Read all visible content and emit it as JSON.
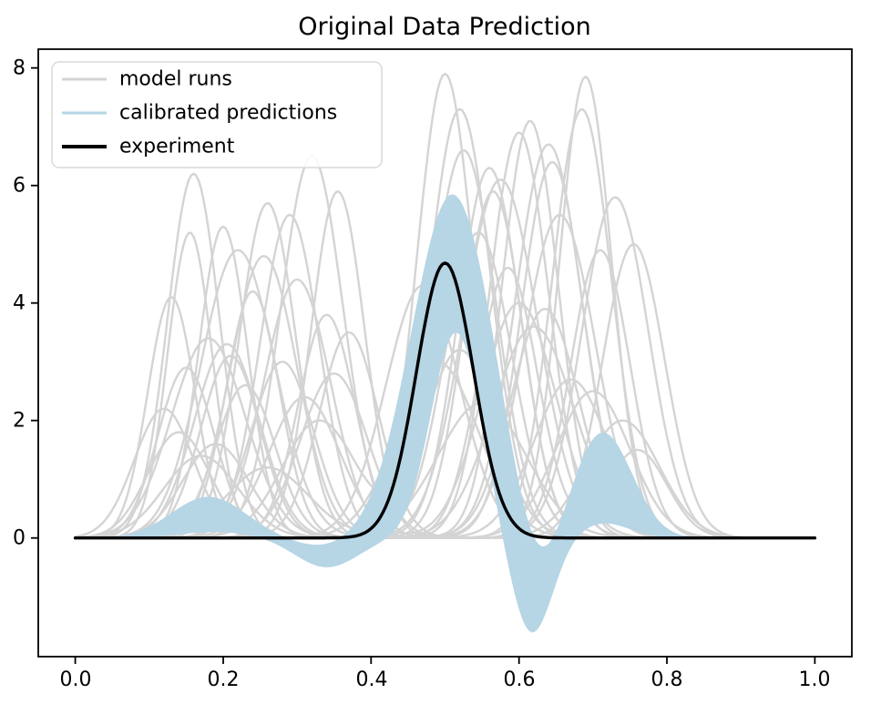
{
  "figure": {
    "background_color": "#ffffff",
    "axes_edge_color": "#000000"
  },
  "chart_data": {
    "type": "line",
    "title": "Original Data Prediction",
    "xlabel": "",
    "ylabel": "",
    "grid": false,
    "xlim": [
      -0.05,
      1.05
    ],
    "ylim": [
      -2.02,
      8.32
    ],
    "xticks": [
      0.0,
      0.2,
      0.4,
      0.6,
      0.8,
      1.0
    ],
    "xtick_labels": [
      "0.0",
      "0.2",
      "0.4",
      "0.6",
      "0.8",
      "1.0"
    ],
    "yticks": [
      0,
      2,
      4,
      6,
      8
    ],
    "ytick_labels": [
      "0",
      "2",
      "4",
      "6",
      "8"
    ],
    "legend": {
      "position": "upper left",
      "entries": [
        {
          "label": "model runs",
          "color": "#d4d4d4",
          "line_width": 3
        },
        {
          "label": "calibrated predictions",
          "color": "#b6d5e5",
          "line_width": 3
        },
        {
          "label": "experiment",
          "color": "#000000",
          "line_width": 4
        }
      ]
    },
    "series": {
      "model_runs": {
        "name": "model runs",
        "color": "#d4d4d4",
        "line_width": 2.4,
        "curve_model": "each curve is a sum of gaussian bumps [amplitude, center, sigma] over x in [0,1]",
        "curves": [
          [
            [
              6.2,
              0.16,
              0.035
            ],
            [
              7.9,
              0.5,
              0.038
            ]
          ],
          [
            [
              5.2,
              0.155,
              0.03
            ],
            [
              7.3,
              0.52,
              0.042
            ]
          ],
          [
            [
              3.1,
              0.21,
              0.04
            ],
            [
              7.85,
              0.69,
              0.035
            ]
          ],
          [
            [
              5.3,
              0.2,
              0.033
            ],
            [
              7.3,
              0.685,
              0.04
            ]
          ],
          [
            [
              5.7,
              0.26,
              0.038
            ],
            [
              6.7,
              0.64,
              0.045
            ]
          ],
          [
            [
              6.5,
              0.32,
              0.042
            ],
            [
              6.9,
              0.6,
              0.04
            ]
          ],
          [
            [
              5.9,
              0.355,
              0.036
            ],
            [
              7.1,
              0.615,
              0.038
            ]
          ],
          [
            [
              4.8,
              0.255,
              0.045
            ],
            [
              6.1,
              0.575,
              0.05
            ]
          ],
          [
            [
              4.1,
              0.13,
              0.032
            ],
            [
              5.2,
              0.545,
              0.045
            ]
          ],
          [
            [
              3.4,
              0.18,
              0.05
            ],
            [
              6.3,
              0.56,
              0.042
            ]
          ],
          [
            [
              2.6,
              0.23,
              0.04
            ],
            [
              5.5,
              0.655,
              0.048
            ]
          ],
          [
            [
              4.4,
              0.3,
              0.045
            ],
            [
              4.9,
              0.71,
              0.04
            ]
          ],
          [
            [
              3.8,
              0.34,
              0.038
            ],
            [
              5.8,
              0.73,
              0.045
            ]
          ],
          [
            [
              2.2,
              0.12,
              0.04
            ],
            [
              4.3,
              0.47,
              0.05
            ]
          ],
          [
            [
              4.9,
              0.22,
              0.05
            ],
            [
              3.6,
              0.62,
              0.055
            ]
          ],
          [
            [
              3.0,
              0.28,
              0.042
            ],
            [
              4.6,
              0.585,
              0.04
            ],
            [
              1.5,
              0.76,
              0.04
            ]
          ],
          [
            [
              2.0,
              0.33,
              0.05
            ],
            [
              3.2,
              0.52,
              0.048
            ]
          ],
          [
            [
              1.6,
              0.19,
              0.045
            ],
            [
              2.7,
              0.67,
              0.05
            ]
          ],
          [
            [
              2.9,
              0.15,
              0.038
            ],
            [
              3.9,
              0.635,
              0.046
            ]
          ],
          [
            [
              1.2,
              0.26,
              0.055
            ],
            [
              2.3,
              0.55,
              0.06
            ]
          ],
          [
            [
              3.5,
              0.37,
              0.04
            ],
            [
              5.0,
              0.755,
              0.042
            ]
          ],
          [
            [
              4.2,
              0.24,
              0.036
            ],
            [
              6.6,
              0.525,
              0.044
            ]
          ],
          [
            [
              2.4,
              0.31,
              0.048
            ],
            [
              4.0,
              0.6,
              0.05
            ]
          ],
          [
            [
              1.8,
              0.14,
              0.042
            ],
            [
              3.0,
              0.49,
              0.055
            ]
          ],
          [
            [
              5.5,
              0.29,
              0.04
            ],
            [
              2.5,
              0.7,
              0.05
            ]
          ],
          [
            [
              3.3,
              0.205,
              0.044
            ],
            [
              5.9,
              0.565,
              0.04
            ]
          ],
          [
            [
              2.8,
              0.35,
              0.045
            ],
            [
              6.4,
              0.645,
              0.042
            ]
          ],
          [
            [
              1.4,
              0.17,
              0.05
            ],
            [
              2.0,
              0.74,
              0.05
            ]
          ]
        ]
      },
      "calibrated_predictions": {
        "name": "calibrated predictions",
        "color": "#b6d5e5",
        "style": "filled band between lower and upper envelope, each a sum of gaussian bumps [amplitude, center, sigma]",
        "upper_envelope_components": [
          [
            0.7,
            0.18,
            0.05
          ],
          [
            -0.15,
            0.335,
            0.04
          ],
          [
            5.85,
            0.51,
            0.055
          ],
          [
            -0.9,
            0.625,
            0.03
          ],
          [
            1.8,
            0.713,
            0.04
          ]
        ],
        "lower_envelope_components": [
          [
            0.1,
            0.19,
            0.05
          ],
          [
            -0.5,
            0.34,
            0.042
          ],
          [
            3.5,
            0.515,
            0.034
          ],
          [
            -1.65,
            0.617,
            0.028
          ],
          [
            0.25,
            0.715,
            0.035
          ]
        ],
        "key_points": {
          "left_bump": {
            "x": 0.18,
            "upper_y": 0.7,
            "lower_y": 0.1
          },
          "negative_dip_1": {
            "x": 0.34,
            "upper_y": -0.1,
            "lower_y": -0.5
          },
          "main_peak": {
            "x": 0.51,
            "upper_y": 5.85,
            "lower_y": 3.5
          },
          "negative_dip_2": {
            "x": 0.62,
            "upper_y": 0.0,
            "lower_y": -1.6
          },
          "right_bump": {
            "x": 0.71,
            "upper_y": 1.75,
            "lower_y": 0.25
          }
        }
      },
      "experiment": {
        "name": "experiment",
        "color": "#000000",
        "line_width": 3.4,
        "style": "single gaussian curve [amplitude, center, sigma]",
        "components": [
          [
            4.68,
            0.5,
            0.0385
          ]
        ],
        "key_points": {
          "peak": {
            "x": 0.5,
            "y": 4.7
          },
          "baseline_y": 0.0
        }
      }
    }
  }
}
